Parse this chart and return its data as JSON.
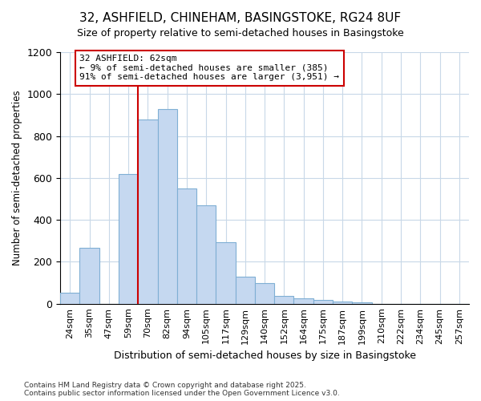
{
  "title1": "32, ASHFIELD, CHINEHAM, BASINGSTOKE, RG24 8UF",
  "title2": "Size of property relative to semi-detached houses in Basingstoke",
  "xlabel": "Distribution of semi-detached houses by size in Basingstoke",
  "ylabel": "Number of semi-detached properties",
  "categories": [
    "24sqm",
    "35sqm",
    "47sqm",
    "59sqm",
    "70sqm",
    "82sqm",
    "94sqm",
    "105sqm",
    "117sqm",
    "129sqm",
    "140sqm",
    "152sqm",
    "164sqm",
    "175sqm",
    "187sqm",
    "199sqm",
    "210sqm",
    "222sqm",
    "234sqm",
    "245sqm",
    "257sqm"
  ],
  "values": [
    52,
    265,
    0,
    620,
    880,
    930,
    550,
    470,
    295,
    130,
    100,
    38,
    27,
    17,
    12,
    8,
    0,
    0,
    0,
    0,
    0
  ],
  "bar_color": "#c5d8f0",
  "bar_edge_color": "#7fafd4",
  "property_size_label": "32 ASHFIELD: 62sqm",
  "pct_smaller": 9,
  "n_smaller": 385,
  "pct_larger": 91,
  "n_larger": 3951,
  "red_line_color": "#cc0000",
  "annotation_box_edge": "#cc0000",
  "ylim": [
    0,
    1200
  ],
  "yticks": [
    0,
    200,
    400,
    600,
    800,
    1000,
    1200
  ],
  "grid_color": "#c8d8e8",
  "bg_color": "#ffffff",
  "footer1": "Contains HM Land Registry data © Crown copyright and database right 2025.",
  "footer2": "Contains public sector information licensed under the Open Government Licence v3.0."
}
